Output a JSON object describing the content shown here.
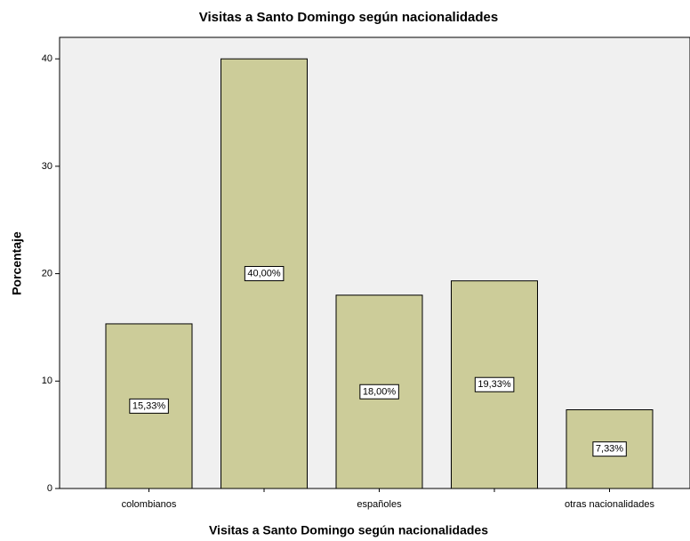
{
  "chart_data": {
    "type": "bar",
    "title": "Visitas a Santo Domingo según nacionalidades",
    "x_label": "Visitas a Santo Domingo según nacionalidades",
    "y_label": "Porcentaje",
    "categories": [
      "colombianos",
      null,
      "españoles",
      null,
      "otras nacionalidades"
    ],
    "values": [
      15.33,
      40,
      18,
      19.33,
      7.33
    ],
    "value_labels": [
      "15,33%",
      "40,00%",
      "18,00%",
      "19,33%",
      "7,33%"
    ],
    "color": "#cccc99",
    "ylim": [
      0,
      42
    ],
    "yticks": [
      0,
      10,
      20,
      30,
      40
    ],
    "grid": false
  }
}
